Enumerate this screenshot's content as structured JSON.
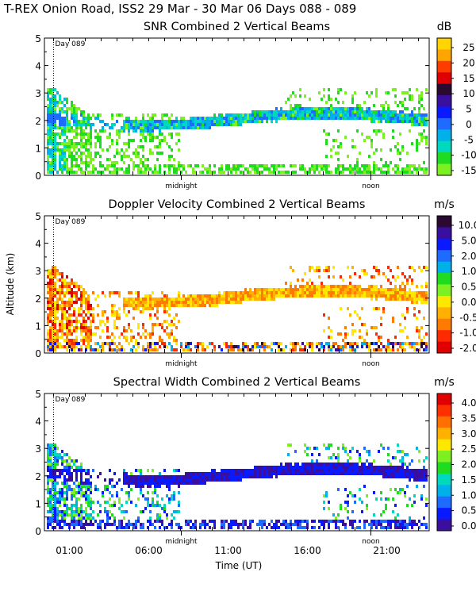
{
  "figure": {
    "title": "T-REX Onion Road, ISS2  29 Mar - 30 Mar 06 Days 088 - 089",
    "ylabel": "Altitude (km)",
    "xlabel": "Time (UT)",
    "bottom_ticks": [
      "01:00",
      "06:00",
      "11:00",
      "16:00",
      "21:00"
    ],
    "day_marker": "Day 089",
    "midnight_label": "midnight",
    "noon_label": "noon"
  },
  "chart_data": [
    {
      "type": "heatmap",
      "id": "snr",
      "title": "SNR Combined 2 Vertical Beams",
      "unit": "dB",
      "ylim": [
        0,
        5
      ],
      "yticks": [
        "0",
        "1",
        "2",
        "3",
        "4",
        "5"
      ],
      "colorbar_ticks": [
        "25",
        "20",
        "15",
        "10",
        "5",
        "0",
        "-5",
        "-10",
        "-15"
      ],
      "colorbar_colors": [
        "#ffd400",
        "#ffa500",
        "#ff3c00",
        "#e00000",
        "#2a0a30",
        "#3a0fa0",
        "#0a1aff",
        "#1e6cff",
        "#00b0e8",
        "#00d8c0",
        "#20dc20",
        "#7cf020"
      ]
    },
    {
      "type": "heatmap",
      "id": "doppler",
      "title": "Doppler Velocity Combined 2 Vertical Beams",
      "unit": "m/s",
      "ylim": [
        0,
        5
      ],
      "yticks": [
        "0",
        "1",
        "2",
        "3",
        "4",
        "5"
      ],
      "colorbar_ticks": [
        "10.0",
        "5.0",
        "2.0",
        "1.0",
        "0.5",
        "0.0",
        "-0.5",
        "-1.0",
        "-2.0"
      ],
      "colorbar_colors": [
        "#2a0a30",
        "#3a0fa0",
        "#0a1aff",
        "#1e6cff",
        "#00b0e8",
        "#20dc20",
        "#7cf020",
        "#ffe800",
        "#ffb000",
        "#ff7a00",
        "#ff2a00",
        "#e00000"
      ]
    },
    {
      "type": "heatmap",
      "id": "width",
      "title": "Spectral Width Combined 2 Vertical Beams",
      "unit": "m/s",
      "ylim": [
        0,
        5
      ],
      "yticks": [
        "0",
        "1",
        "2",
        "3",
        "4",
        "5"
      ],
      "colorbar_ticks": [
        "4.0",
        "3.5",
        "3.0",
        "2.5",
        "2.0",
        "1.5",
        "1.0",
        "0.5",
        "0.0"
      ],
      "colorbar_colors": [
        "#e00000",
        "#ff3000",
        "#ff7000",
        "#ffb000",
        "#ffe800",
        "#7cf020",
        "#20dc20",
        "#00d8c0",
        "#00b0e8",
        "#1e6cff",
        "#0a1aff",
        "#3a0fa0"
      ]
    }
  ]
}
